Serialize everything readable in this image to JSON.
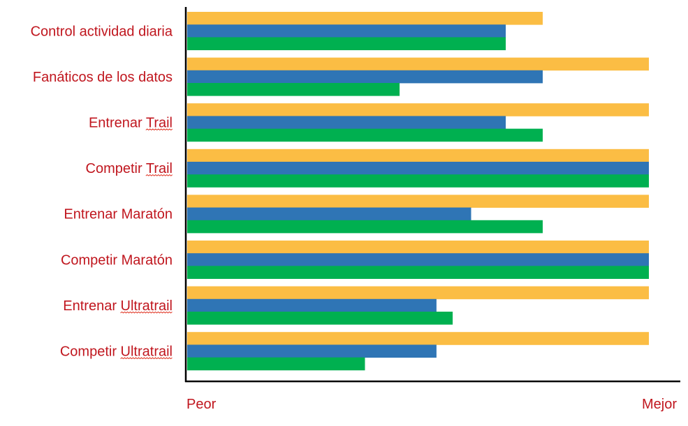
{
  "chart_data": {
    "type": "bar",
    "orientation": "horizontal",
    "categories": [
      "Control actividad diaria",
      "Fanáticos de los datos",
      "Entrenar Trail",
      "Competir Trail",
      "Entrenar Maratón",
      "Competir Maratón",
      "Entrenar Ultratrail",
      "Competir Ultratrail"
    ],
    "spellcheck_underlined_words": [
      null,
      null,
      "Trail",
      "Trail",
      null,
      null,
      "Ultratrail",
      "Ultratrail"
    ],
    "series": [
      {
        "color": "#fbbd44",
        "values": [
          0.77,
          1.0,
          1.0,
          1.0,
          1.0,
          1.0,
          1.0,
          1.0
        ]
      },
      {
        "color": "#2f75b5",
        "values": [
          0.69,
          0.77,
          0.69,
          1.0,
          0.615,
          1.0,
          0.54,
          0.54
        ]
      },
      {
        "color": "#00b050",
        "values": [
          0.69,
          0.46,
          0.77,
          1.0,
          0.77,
          1.0,
          0.575,
          0.385
        ]
      }
    ],
    "xlim": [
      0,
      1
    ],
    "x_start_label": "Peor",
    "x_end_label": "Mejor",
    "grid": false,
    "legend": "none"
  }
}
